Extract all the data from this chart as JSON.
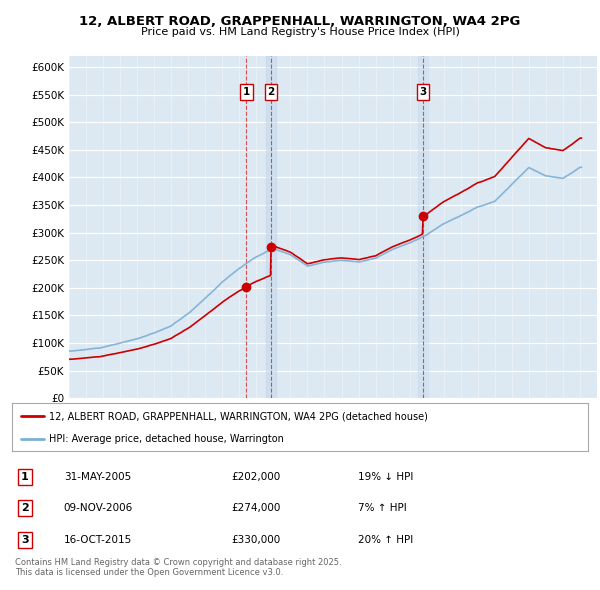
{
  "title1": "12, ALBERT ROAD, GRAPPENHALL, WARRINGTON, WA4 2PG",
  "title2": "Price paid vs. HM Land Registry's House Price Index (HPI)",
  "legend_line1": "12, ALBERT ROAD, GRAPPENHALL, WARRINGTON, WA4 2PG (detached house)",
  "legend_line2": "HPI: Average price, detached house, Warrington",
  "sale_color": "#cc0000",
  "hpi_color": "#7bafd4",
  "background_color": "#dce8f2",
  "sales": [
    {
      "date_num": 2005.41,
      "price": 202000,
      "label": "1"
    },
    {
      "date_num": 2006.86,
      "price": 274000,
      "label": "2"
    },
    {
      "date_num": 2015.79,
      "price": 330000,
      "label": "3"
    }
  ],
  "sale_annotations": [
    {
      "label": "1",
      "date": "31-MAY-2005",
      "price": "£202,000",
      "hpi_change": "19% ↓ HPI"
    },
    {
      "label": "2",
      "date": "09-NOV-2006",
      "price": "£274,000",
      "hpi_change": "7% ↑ HPI"
    },
    {
      "label": "3",
      "date": "16-OCT-2015",
      "price": "£330,000",
      "hpi_change": "20% ↑ HPI"
    }
  ],
  "footer": "Contains HM Land Registry data © Crown copyright and database right 2025.\nThis data is licensed under the Open Government Licence v3.0.",
  "ylim": [
    0,
    620000
  ],
  "ytick_step": 50000,
  "xstart": 1995,
  "xend": 2026
}
